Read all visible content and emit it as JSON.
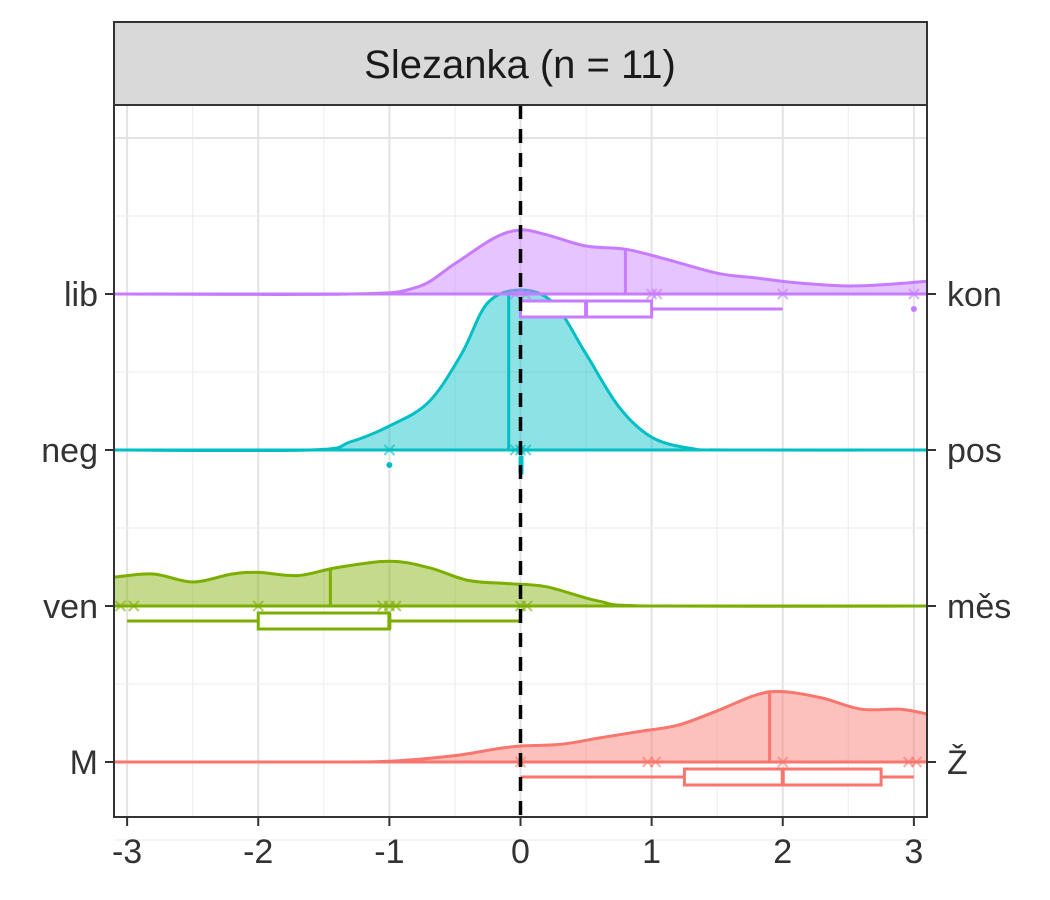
{
  "chart_data": {
    "type": "ridgeline-density-boxplot",
    "panel_title": "Slezanka (n = 11)",
    "x_range": [
      -3.1,
      3.1
    ],
    "x_ticks": [
      -3,
      -2,
      -1,
      0,
      1,
      2,
      3
    ],
    "x_tick_labels": [
      "-3",
      "-2",
      "-1",
      "0",
      "1",
      "2",
      "3"
    ],
    "reference_line_x": 0,
    "grid": true,
    "series": [
      {
        "left_label": "M",
        "right_label": "Ž",
        "color": "#F8766D",
        "density": [
          [
            -3.1,
            0
          ],
          [
            -1.5,
            0
          ],
          [
            -1.0,
            0.005
          ],
          [
            -0.5,
            0.04
          ],
          [
            -0.2,
            0.08
          ],
          [
            0,
            0.1
          ],
          [
            0.3,
            0.11
          ],
          [
            0.6,
            0.15
          ],
          [
            0.9,
            0.19
          ],
          [
            1.2,
            0.23
          ],
          [
            1.5,
            0.32
          ],
          [
            1.8,
            0.42
          ],
          [
            2.0,
            0.44
          ],
          [
            2.3,
            0.4
          ],
          [
            2.6,
            0.33
          ],
          [
            2.9,
            0.33
          ],
          [
            3.1,
            0.3
          ]
        ],
        "mean": 1.9,
        "points": [
          0,
          0.97,
          1.03,
          2.0,
          2.96,
          3.02
        ],
        "box": {
          "min": 0,
          "q1": 1.25,
          "median": 2.0,
          "q3": 2.75,
          "max": 3.0,
          "outliers": []
        }
      },
      {
        "left_label": "ven",
        "right_label": "měs",
        "color": "#7CAE00",
        "density": [
          [
            -3.1,
            0.18
          ],
          [
            -2.8,
            0.2
          ],
          [
            -2.5,
            0.15
          ],
          [
            -2.2,
            0.2
          ],
          [
            -2.0,
            0.21
          ],
          [
            -1.7,
            0.19
          ],
          [
            -1.4,
            0.24
          ],
          [
            -1.0,
            0.28
          ],
          [
            -0.7,
            0.24
          ],
          [
            -0.4,
            0.16
          ],
          [
            -0.1,
            0.14
          ],
          [
            0.2,
            0.12
          ],
          [
            0.6,
            0.03
          ],
          [
            1.0,
            0
          ],
          [
            3.1,
            0
          ]
        ],
        "mean": -1.45,
        "points": [
          -3.05,
          -2.95,
          -2.0,
          -1.05,
          -1.0,
          -0.95,
          0,
          0.05
        ],
        "box": {
          "min": -3.0,
          "q1": -2.0,
          "median": -1.0,
          "q3": -1.0,
          "max": 0,
          "outliers": []
        }
      },
      {
        "left_label": "neg",
        "right_label": "pos",
        "color": "#00BFC4",
        "density": [
          [
            -3.1,
            0
          ],
          [
            -1.6,
            0
          ],
          [
            -1.3,
            0.05
          ],
          [
            -1.0,
            0.15
          ],
          [
            -0.7,
            0.3
          ],
          [
            -0.45,
            0.6
          ],
          [
            -0.25,
            0.92
          ],
          [
            0,
            1.0
          ],
          [
            0.25,
            0.92
          ],
          [
            0.5,
            0.6
          ],
          [
            0.75,
            0.27
          ],
          [
            1.0,
            0.08
          ],
          [
            1.3,
            0.01
          ],
          [
            1.6,
            0
          ],
          [
            3.1,
            0
          ]
        ],
        "mean": -0.09,
        "points": [
          -1.0,
          -0.04,
          0,
          0.04
        ],
        "box": {
          "min": 0,
          "q1": 0,
          "median": 0,
          "q3": 0,
          "max": 0,
          "outliers": [
            -1.0
          ]
        }
      },
      {
        "left_label": "lib",
        "right_label": "kon",
        "color": "#C77CFF",
        "density": [
          [
            -3.1,
            0
          ],
          [
            -1.3,
            0
          ],
          [
            -0.8,
            0.04
          ],
          [
            -0.5,
            0.19
          ],
          [
            -0.2,
            0.35
          ],
          [
            0,
            0.4
          ],
          [
            0.2,
            0.37
          ],
          [
            0.5,
            0.3
          ],
          [
            0.8,
            0.28
          ],
          [
            1.1,
            0.22
          ],
          [
            1.5,
            0.13
          ],
          [
            1.8,
            0.1
          ],
          [
            2.1,
            0.07
          ],
          [
            2.5,
            0.05
          ],
          [
            2.8,
            0.06
          ],
          [
            3.1,
            0.08
          ]
        ],
        "mean": 0.8,
        "points": [
          -0.04,
          0.04,
          1.0,
          1.04,
          2.0,
          3.0
        ],
        "box": {
          "min": 0,
          "q1": 0,
          "median": 0.5,
          "q3": 1.0,
          "max": 2.0,
          "outliers": [
            3.0
          ]
        }
      }
    ]
  }
}
